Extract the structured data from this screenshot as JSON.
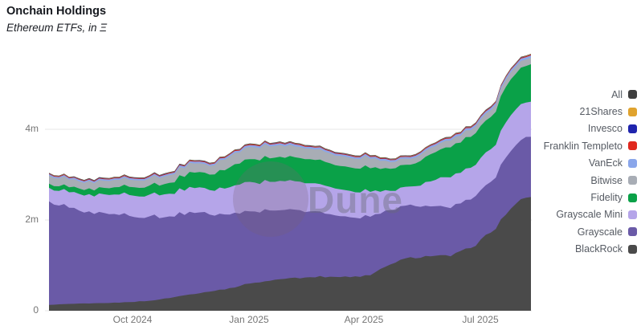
{
  "header": {
    "title": "Onchain Holdings",
    "subtitle": "Ethereum ETFs, in Ξ"
  },
  "watermark": {
    "text": "Dune"
  },
  "axes": {
    "y_ticks": [
      {
        "label": "0",
        "value": 0
      },
      {
        "label": "2m",
        "value": 2
      },
      {
        "label": "4m",
        "value": 4
      }
    ],
    "x_ticks": [
      {
        "label": "Oct 2024"
      },
      {
        "label": "Jan 2025"
      },
      {
        "label": "Apr 2025"
      },
      {
        "label": "Jul 2025"
      }
    ]
  },
  "chart_data": {
    "type": "area",
    "stacked": true,
    "title": "Onchain Holdings",
    "subtitle": "Ethereum ETFs, in Ξ",
    "unit": "millions of ETH (Ξ)",
    "ylim": [
      0,
      5.9
    ],
    "grid": "horizontal",
    "legend_position": "right",
    "x": [
      "2024-07-27",
      "2024-08-12",
      "2024-08-28",
      "2024-09-13",
      "2024-09-29",
      "2024-10-15",
      "2024-10-31",
      "2024-11-16",
      "2024-12-02",
      "2024-12-17",
      "2025-01-02",
      "2025-01-18",
      "2025-02-03",
      "2025-02-19",
      "2025-03-07",
      "2025-03-23",
      "2025-04-08",
      "2025-04-24",
      "2025-05-10",
      "2025-05-26",
      "2025-06-11",
      "2025-06-27",
      "2025-07-13",
      "2025-07-29",
      "2025-08-12"
    ],
    "x_tick_labels": [
      "Oct 2024",
      "Jan 2025",
      "Apr 2025",
      "Jul 2025"
    ],
    "y_tick_labels": [
      "0",
      "2m",
      "4m"
    ],
    "series": [
      {
        "name": "BlackRock",
        "color": "#4a4a4a",
        "values": [
          0.13,
          0.15,
          0.16,
          0.17,
          0.19,
          0.22,
          0.28,
          0.36,
          0.42,
          0.5,
          0.6,
          0.66,
          0.72,
          0.74,
          0.75,
          0.74,
          0.78,
          1.02,
          1.18,
          1.2,
          1.2,
          1.38,
          1.72,
          2.25,
          2.55
        ]
      },
      {
        "name": "Grayscale",
        "color": "#6a5aa7",
        "values": [
          2.28,
          2.12,
          2.03,
          1.96,
          1.9,
          1.86,
          1.8,
          1.82,
          1.7,
          1.62,
          1.59,
          1.55,
          1.52,
          1.45,
          1.38,
          1.32,
          1.29,
          1.2,
          1.16,
          1.1,
          1.06,
          1.07,
          1.12,
          1.27,
          1.36
        ]
      },
      {
        "name": "Grayscale Mini",
        "color": "#b5a5e9",
        "values": [
          0.3,
          0.34,
          0.38,
          0.42,
          0.46,
          0.48,
          0.5,
          0.55,
          0.54,
          0.6,
          0.65,
          0.63,
          0.64,
          0.62,
          0.6,
          0.58,
          0.55,
          0.42,
          0.4,
          0.55,
          0.68,
          0.7,
          0.72,
          0.79,
          0.76
        ]
      },
      {
        "name": "Fidelity",
        "color": "#0aa148",
        "values": [
          0.09,
          0.11,
          0.13,
          0.15,
          0.18,
          0.2,
          0.24,
          0.33,
          0.34,
          0.44,
          0.5,
          0.52,
          0.53,
          0.53,
          0.52,
          0.52,
          0.52,
          0.49,
          0.48,
          0.6,
          0.66,
          0.68,
          0.71,
          0.79,
          0.83
        ]
      },
      {
        "name": "Bitwise",
        "color": "#a8adb5",
        "values": [
          0.18,
          0.17,
          0.16,
          0.16,
          0.16,
          0.16,
          0.17,
          0.2,
          0.19,
          0.24,
          0.27,
          0.26,
          0.25,
          0.23,
          0.22,
          0.21,
          0.21,
          0.15,
          0.13,
          0.14,
          0.15,
          0.15,
          0.15,
          0.16,
          0.14
        ]
      },
      {
        "name": "VanEck",
        "color": "#8aa6ea",
        "values": [
          0.03,
          0.031,
          0.032,
          0.033,
          0.034,
          0.034,
          0.035,
          0.038,
          0.036,
          0.04,
          0.042,
          0.042,
          0.042,
          0.042,
          0.041,
          0.04,
          0.04,
          0.038,
          0.038,
          0.042,
          0.046,
          0.048,
          0.05,
          0.052,
          0.05
        ]
      },
      {
        "name": "Franklin Templeto",
        "color": "#e0281e",
        "values": [
          0.01,
          0.01,
          0.011,
          0.011,
          0.012,
          0.012,
          0.012,
          0.013,
          0.012,
          0.013,
          0.013,
          0.013,
          0.013,
          0.013,
          0.013,
          0.013,
          0.013,
          0.012,
          0.012,
          0.013,
          0.013,
          0.014,
          0.014,
          0.014,
          0.014
        ]
      },
      {
        "name": "Invesco",
        "color": "#1f24ad",
        "values": [
          0.006,
          0.006,
          0.006,
          0.006,
          0.006,
          0.006,
          0.006,
          0.006,
          0.006,
          0.006,
          0.006,
          0.006,
          0.006,
          0.006,
          0.006,
          0.006,
          0.006,
          0.006,
          0.006,
          0.006,
          0.006,
          0.006,
          0.006,
          0.006,
          0.006
        ]
      },
      {
        "name": "21Shares",
        "color": "#e0a32e",
        "values": [
          0.005,
          0.005,
          0.005,
          0.005,
          0.005,
          0.006,
          0.006,
          0.006,
          0.006,
          0.006,
          0.007,
          0.007,
          0.007,
          0.007,
          0.007,
          0.007,
          0.007,
          0.007,
          0.007,
          0.007,
          0.008,
          0.008,
          0.008,
          0.008,
          0.008
        ]
      },
      {
        "name": "All",
        "color": "#3f3f3f",
        "values": [
          0.01,
          0.01,
          0.01,
          0.01,
          0.01,
          0.01,
          0.01,
          0.01,
          0.01,
          0.01,
          0.01,
          0.01,
          0.01,
          0.01,
          0.01,
          0.01,
          0.01,
          0.01,
          0.01,
          0.01,
          0.01,
          0.01,
          0.01,
          0.01,
          0.01
        ]
      }
    ]
  }
}
